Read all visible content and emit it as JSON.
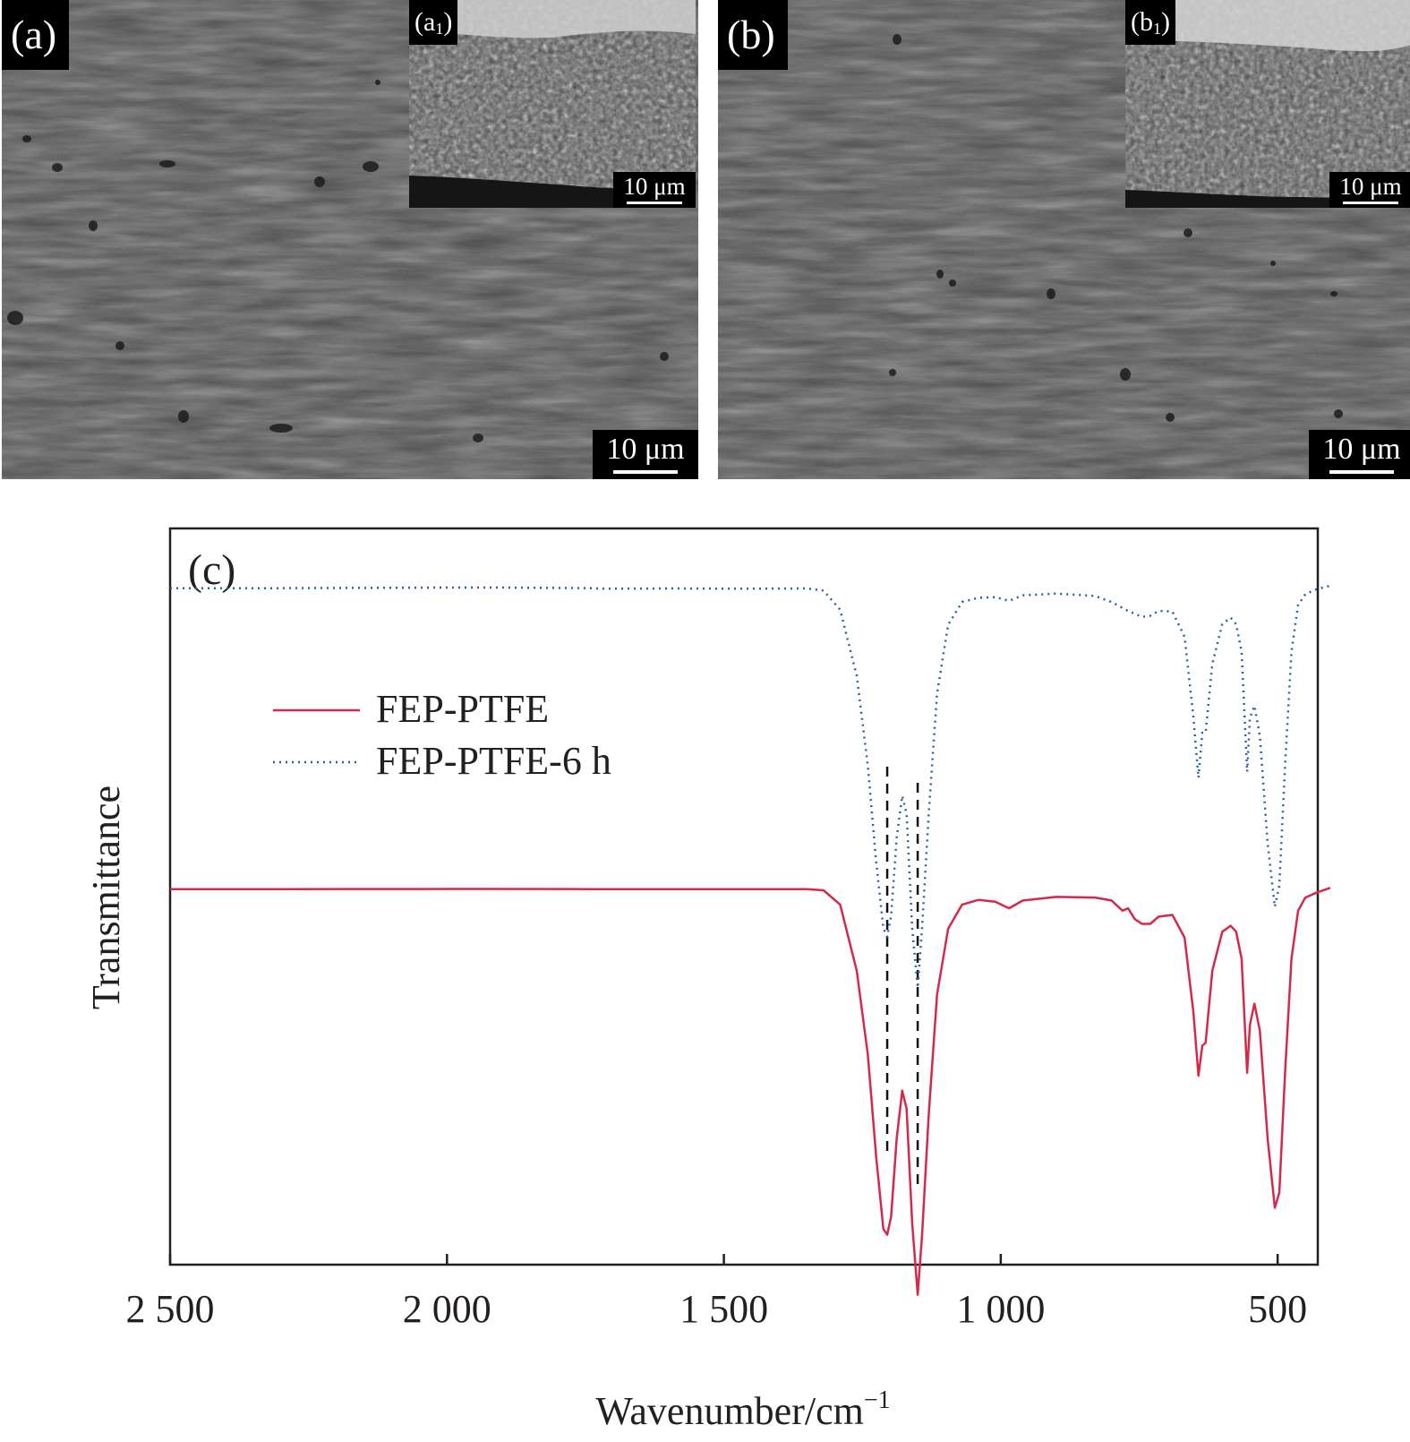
{
  "panels": [
    {
      "label": "(a)",
      "inset_label": "a",
      "inset_sub": "1",
      "scale_main": "10 μm",
      "scale_inset": "10 μm"
    },
    {
      "label": "(b)",
      "inset_label": "b",
      "inset_sub": "1",
      "scale_main": "10 μm",
      "scale_inset": "10 μm"
    }
  ],
  "chart_data": {
    "type": "line",
    "panel_label": "(c)",
    "xlabel": "Wavenumber/cm",
    "xlabel_superscript": "−1",
    "ylabel": "Transmittance",
    "xlim": [
      2500,
      400
    ],
    "x_reversed": true,
    "yticks_shown": false,
    "xticks": [
      2500,
      2000,
      1500,
      1000,
      500
    ],
    "xtick_labels": [
      "2 500",
      "2 000",
      "1 500",
      "1 000",
      "500"
    ],
    "legend_position": "upper-left",
    "reference_lines": [
      1205,
      1150
    ],
    "series": [
      {
        "name": "FEP-PTFE",
        "style": "solid",
        "color": "#d22a48",
        "points": [
          [
            2500,
            0.4
          ],
          [
            2300,
            0.4
          ],
          [
            2050,
            0.39
          ],
          [
            1950,
            0.38
          ],
          [
            1740,
            0.4
          ],
          [
            1720,
            0.42
          ],
          [
            1600,
            0.4
          ],
          [
            1470,
            0.41
          ],
          [
            1350,
            0.41
          ],
          [
            1320,
            0.6
          ],
          [
            1290,
            3
          ],
          [
            1260,
            14
          ],
          [
            1240,
            28
          ],
          [
            1225,
            45
          ],
          [
            1212,
            57
          ],
          [
            1205,
            58
          ],
          [
            1198,
            55
          ],
          [
            1188,
            42
          ],
          [
            1178,
            34
          ],
          [
            1170,
            37
          ],
          [
            1160,
            56
          ],
          [
            1150,
            68
          ],
          [
            1142,
            58
          ],
          [
            1130,
            38
          ],
          [
            1115,
            18
          ],
          [
            1095,
            7
          ],
          [
            1070,
            3
          ],
          [
            1040,
            2.2
          ],
          [
            1010,
            2.5
          ],
          [
            985,
            3.6
          ],
          [
            960,
            2.3
          ],
          [
            900,
            1.7
          ],
          [
            830,
            1.8
          ],
          [
            800,
            2.3
          ],
          [
            780,
            4
          ],
          [
            770,
            3.6
          ],
          [
            758,
            5.4
          ],
          [
            745,
            6.2
          ],
          [
            730,
            6.2
          ],
          [
            715,
            5
          ],
          [
            690,
            4.7
          ],
          [
            668,
            8.5
          ],
          [
            652,
            21
          ],
          [
            643,
            31.5
          ],
          [
            636,
            26.5
          ],
          [
            630,
            26
          ],
          [
            618,
            14
          ],
          [
            600,
            7.5
          ],
          [
            585,
            6.5
          ],
          [
            575,
            7.5
          ],
          [
            565,
            12
          ],
          [
            555,
            31
          ],
          [
            550,
            23
          ],
          [
            542,
            19.5
          ],
          [
            532,
            24
          ],
          [
            518,
            42
          ],
          [
            505,
            53.5
          ],
          [
            497,
            51
          ],
          [
            486,
            30
          ],
          [
            475,
            12
          ],
          [
            463,
            4
          ],
          [
            450,
            1.8
          ],
          [
            430,
            1
          ],
          [
            405,
            0.2
          ]
        ]
      },
      {
        "name": "FEP-PTFE-6 h",
        "style": "dotted",
        "color": "#2a5fa8",
        "points": [
          [
            2500,
            0.4
          ],
          [
            2300,
            0.4
          ],
          [
            2000,
            0.3
          ],
          [
            1900,
            0.3
          ],
          [
            1740,
            0.4
          ],
          [
            1720,
            0.5
          ],
          [
            1600,
            0.45
          ],
          [
            1470,
            0.5
          ],
          [
            1350,
            0.45
          ],
          [
            1320,
            0.8
          ],
          [
            1290,
            4
          ],
          [
            1260,
            15
          ],
          [
            1240,
            30
          ],
          [
            1225,
            46
          ],
          [
            1212,
            57
          ],
          [
            1205,
            58.5
          ],
          [
            1198,
            55
          ],
          [
            1188,
            42
          ],
          [
            1178,
            35
          ],
          [
            1170,
            38
          ],
          [
            1160,
            57
          ],
          [
            1150,
            67
          ],
          [
            1142,
            57
          ],
          [
            1130,
            38
          ],
          [
            1115,
            18
          ],
          [
            1095,
            6.5
          ],
          [
            1070,
            2.7
          ],
          [
            1040,
            2
          ],
          [
            1010,
            1.9
          ],
          [
            985,
            2.5
          ],
          [
            960,
            1.6
          ],
          [
            900,
            1.3
          ],
          [
            830,
            1.7
          ],
          [
            800,
            2.7
          ],
          [
            770,
            4.2
          ],
          [
            745,
            5.2
          ],
          [
            730,
            5
          ],
          [
            715,
            4.2
          ],
          [
            690,
            4.3
          ],
          [
            668,
            8.5
          ],
          [
            652,
            22
          ],
          [
            643,
            32
          ],
          [
            636,
            24.5
          ],
          [
            630,
            24.5
          ],
          [
            618,
            13
          ],
          [
            600,
            6.4
          ],
          [
            585,
            5.3
          ],
          [
            575,
            6.4
          ],
          [
            565,
            11
          ],
          [
            555,
            31
          ],
          [
            550,
            22
          ],
          [
            542,
            20
          ],
          [
            532,
            25
          ],
          [
            518,
            43
          ],
          [
            505,
            53.5
          ],
          [
            497,
            50
          ],
          [
            486,
            29
          ],
          [
            475,
            11
          ],
          [
            463,
            3.2
          ],
          [
            450,
            1.4
          ],
          [
            430,
            0.6
          ],
          [
            405,
            0
          ]
        ]
      }
    ]
  }
}
